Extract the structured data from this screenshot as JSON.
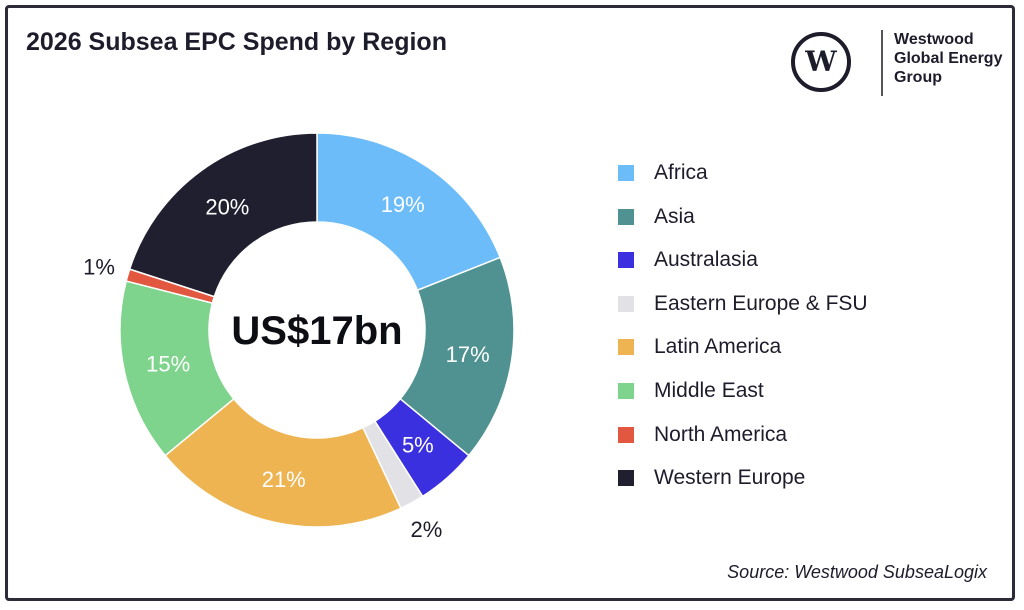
{
  "title": "2026 Subsea EPC Spend by Region",
  "center_label": "US$17bn",
  "source": "Source: Westwood SubseaLogix",
  "logo": {
    "letter": "W",
    "lines": [
      "Westwood",
      "Global Energy",
      "Group"
    ]
  },
  "chart_data": {
    "type": "pie",
    "style": "donut",
    "title": "2026 Subsea EPC Spend by Region",
    "legend_position": "right",
    "slices": [
      {
        "label": "Africa",
        "value": 19,
        "display": "19%",
        "color": "#6bbcf8"
      },
      {
        "label": "Asia",
        "value": 17,
        "display": "17%",
        "color": "#4f9291"
      },
      {
        "label": "Australasia",
        "value": 5,
        "display": "5%",
        "color": "#3a30e0"
      },
      {
        "label": "Eastern Europe & FSU",
        "value": 2,
        "display": "2%",
        "color": "#e1e1e6"
      },
      {
        "label": "Latin America",
        "value": 21,
        "display": "21%",
        "color": "#eeb452"
      },
      {
        "label": "Middle East",
        "value": 15,
        "display": "15%",
        "color": "#7ed48c"
      },
      {
        "label": "North America",
        "value": 1,
        "display": "1%",
        "color": "#e2573f"
      },
      {
        "label": "Western Europe",
        "value": 20,
        "display": "20%",
        "color": "#201f30"
      }
    ]
  }
}
